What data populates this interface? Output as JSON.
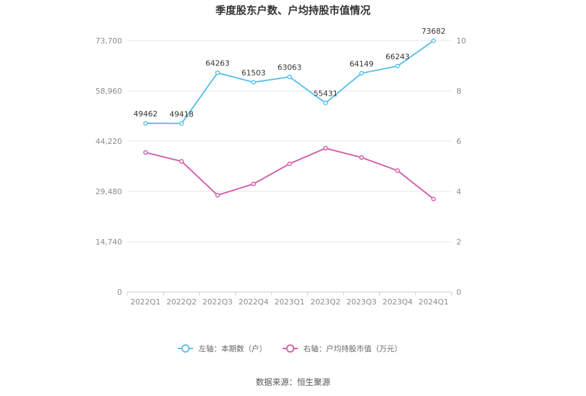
{
  "chart_data": {
    "type": "line",
    "title": "季度股东户数、户均持股市值情况",
    "categories": [
      "2022Q1",
      "2022Q2",
      "2022Q3",
      "2022Q4",
      "2023Q1",
      "2023Q2",
      "2023Q3",
      "2023Q4",
      "2024Q1"
    ],
    "left_axis": {
      "ticks": [
        "0",
        "14,740",
        "29,480",
        "44,220",
        "58,960",
        "73,700"
      ],
      "range": [
        0,
        73700
      ]
    },
    "right_axis": {
      "ticks": [
        "0",
        "2",
        "4",
        "6",
        "8",
        "10"
      ],
      "range": [
        0,
        10
      ]
    },
    "grid": true,
    "legend_position": "bottom",
    "series": [
      {
        "name": "左轴：本期数（户）",
        "axis": "left",
        "color": "#5bc0eb",
        "values": [
          49462,
          49418,
          64263,
          61503,
          63063,
          55431,
          64149,
          66243,
          73682
        ],
        "show_labels": true
      },
      {
        "name": "右轴：户均持股市值（万元）",
        "axis": "right",
        "color": "#d45fa8",
        "values": [
          5.55,
          5.2,
          3.85,
          4.3,
          5.1,
          5.72,
          5.35,
          4.83,
          3.7
        ],
        "show_labels": false
      }
    ],
    "source": "数据来源：恒生聚源"
  }
}
